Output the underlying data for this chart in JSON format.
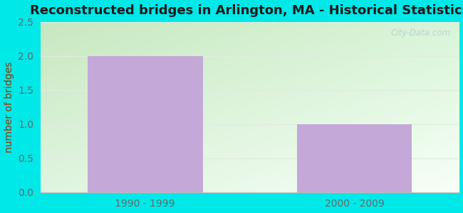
{
  "title": "Reconstructed bridges in Arlington, MA - Historical Statistics",
  "categories": [
    "1990 - 1999",
    "2000 - 2009"
  ],
  "values": [
    2,
    1
  ],
  "bar_color": "#c4a8d8",
  "bar_width": 0.55,
  "ylabel": "number of bridges",
  "ylim": [
    0,
    2.5
  ],
  "yticks": [
    0,
    0.5,
    1,
    1.5,
    2,
    2.5
  ],
  "title_fontsize": 13,
  "ylabel_fontsize": 10,
  "tick_fontsize": 10,
  "title_color": "#1a1a1a",
  "ylabel_color": "#993300",
  "tick_color": "#666666",
  "bg_top_left": "#c8e8c0",
  "bg_bottom_right": "#f8fff8",
  "watermark": "City-Data.com",
  "outer_bg": "#00e8e8",
  "grid_color": "#e0ece0",
  "figsize": [
    6.5,
    3.0
  ],
  "dpi": 100
}
